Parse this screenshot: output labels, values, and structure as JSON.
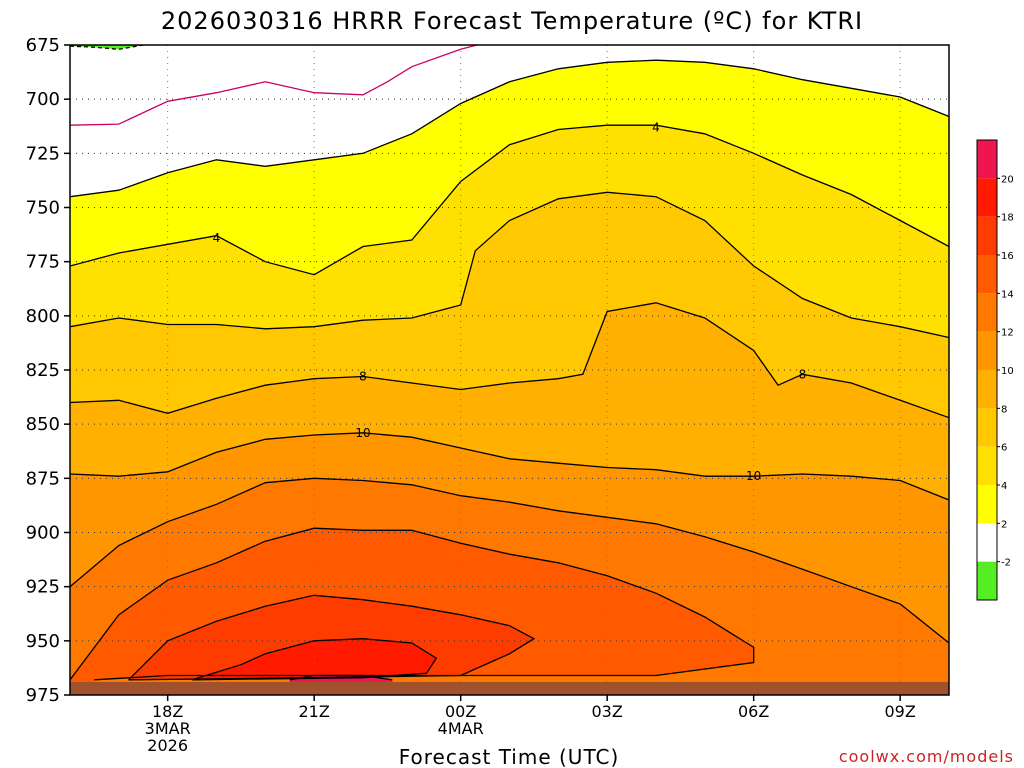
{
  "chart_data": {
    "type": "contour",
    "title": "2026030316 HRRR Forecast Temperature (ºC) for KTRI",
    "xlabel": "Forecast Time (UTC)",
    "ylabel": "",
    "credit": "coolwx.com/models",
    "y_axis": {
      "ticks": [
        675,
        700,
        725,
        750,
        775,
        800,
        825,
        850,
        875,
        900,
        925,
        950,
        975
      ],
      "ylim": [
        675,
        975
      ],
      "inverted": true
    },
    "x_axis": {
      "xlim": [
        16,
        34
      ],
      "ticks": [
        {
          "x": 18,
          "line1": "18Z",
          "line2": "3MAR",
          "line3": "2026"
        },
        {
          "x": 21,
          "line1": "21Z",
          "line2": "",
          "line3": ""
        },
        {
          "x": 24,
          "line1": "00Z",
          "line2": "4MAR",
          "line3": ""
        },
        {
          "x": 27,
          "line1": "03Z",
          "line2": "",
          "line3": ""
        },
        {
          "x": 30,
          "line1": "06Z",
          "line2": "",
          "line3": ""
        },
        {
          "x": 33,
          "line1": "09Z",
          "line2": "",
          "line3": ""
        }
      ]
    },
    "grid": true,
    "ground_level": 969,
    "colorbar": {
      "levels": [
        -2,
        2,
        4,
        6,
        8,
        10,
        12,
        14,
        16,
        18,
        20
      ],
      "labels": [
        "-2",
        "2",
        "4",
        "6",
        "8",
        "10",
        "12",
        "14",
        "16",
        "18",
        "20"
      ],
      "colors": [
        "#55ee22",
        "#ffffff",
        "#ffff00",
        "#ffe000",
        "#ffc800",
        "#ffb000",
        "#ff9600",
        "#ff7800",
        "#ff5a00",
        "#ff3c00",
        "#ff1a00",
        "#ee1650"
      ]
    },
    "contours": [
      {
        "level": -2,
        "color": "#000000",
        "dashed": true,
        "points": [
          [
            16,
            675.5
          ],
          [
            16.5,
            676
          ],
          [
            17,
            677
          ],
          [
            17.5,
            675
          ]
        ]
      },
      {
        "level": 0,
        "color": "#cc0066",
        "dashed": false,
        "points": [
          [
            16,
            712
          ],
          [
            17,
            711.5
          ],
          [
            18,
            701
          ],
          [
            19,
            697
          ],
          [
            20,
            692
          ],
          [
            21,
            697
          ],
          [
            22,
            698
          ],
          [
            22.5,
            692
          ],
          [
            23,
            685
          ],
          [
            24,
            677
          ],
          [
            24.5,
            674
          ]
        ]
      },
      {
        "level": 2,
        "color": "#000000",
        "dashed": false,
        "points": [
          [
            16,
            745
          ],
          [
            17,
            742
          ],
          [
            18,
            734
          ],
          [
            19,
            728
          ],
          [
            20,
            731
          ],
          [
            21,
            728
          ],
          [
            22,
            725
          ],
          [
            23,
            716
          ],
          [
            24,
            702
          ],
          [
            25,
            692
          ],
          [
            26,
            686
          ],
          [
            27,
            683
          ],
          [
            28,
            682
          ],
          [
            29,
            683
          ],
          [
            30,
            686
          ],
          [
            31,
            691
          ],
          [
            32,
            695
          ],
          [
            33,
            699
          ],
          [
            34,
            708
          ]
        ]
      },
      {
        "level": 4,
        "color": "#000000",
        "dashed": false,
        "label_at": [
          [
            19,
            764
          ],
          [
            28,
            713
          ]
        ],
        "points": [
          [
            16,
            777
          ],
          [
            17,
            771
          ],
          [
            18,
            767
          ],
          [
            19,
            763
          ],
          [
            20,
            775
          ],
          [
            21,
            781
          ],
          [
            22,
            768
          ],
          [
            23,
            765
          ],
          [
            24,
            738
          ],
          [
            25,
            721
          ],
          [
            26,
            714
          ],
          [
            27,
            712
          ],
          [
            28,
            712
          ],
          [
            29,
            716
          ],
          [
            30,
            725
          ],
          [
            31,
            735
          ],
          [
            32,
            744
          ],
          [
            33,
            756
          ],
          [
            34,
            768
          ]
        ]
      },
      {
        "level": 6,
        "color": "#000000",
        "dashed": false,
        "points": [
          [
            16,
            805
          ],
          [
            17,
            801
          ],
          [
            18,
            804
          ],
          [
            19,
            804
          ],
          [
            20,
            806
          ],
          [
            21,
            805
          ],
          [
            22,
            802
          ],
          [
            23,
            801
          ],
          [
            24,
            795
          ],
          [
            24.3,
            770
          ],
          [
            25,
            756
          ],
          [
            26,
            746
          ],
          [
            27,
            743
          ],
          [
            28,
            745
          ],
          [
            29,
            756
          ],
          [
            30,
            777
          ],
          [
            31,
            792
          ],
          [
            32,
            801
          ],
          [
            33,
            805
          ],
          [
            34,
            810
          ]
        ]
      },
      {
        "level": 8,
        "color": "#000000",
        "dashed": false,
        "label_at": [
          [
            22,
            828
          ],
          [
            31,
            827
          ]
        ],
        "points": [
          [
            16,
            840
          ],
          [
            17,
            839
          ],
          [
            18,
            845
          ],
          [
            19,
            838
          ],
          [
            20,
            832
          ],
          [
            21,
            829
          ],
          [
            22,
            828
          ],
          [
            23,
            831
          ],
          [
            24,
            834
          ],
          [
            25,
            831
          ],
          [
            26,
            829
          ],
          [
            26.5,
            827
          ],
          [
            27,
            798
          ],
          [
            28,
            794
          ],
          [
            29,
            801
          ],
          [
            30,
            816
          ],
          [
            30.5,
            832
          ],
          [
            31,
            827
          ],
          [
            32,
            831
          ],
          [
            33,
            839
          ],
          [
            34,
            847
          ]
        ]
      },
      {
        "level": 10,
        "color": "#000000",
        "dashed": false,
        "label_at": [
          [
            22,
            854
          ],
          [
            30,
            874
          ]
        ],
        "points": [
          [
            16,
            873
          ],
          [
            17,
            874
          ],
          [
            18,
            872
          ],
          [
            19,
            863
          ],
          [
            20,
            857
          ],
          [
            21,
            855
          ],
          [
            22,
            854
          ],
          [
            23,
            856
          ],
          [
            24,
            861
          ],
          [
            25,
            866
          ],
          [
            26,
            868
          ],
          [
            27,
            870
          ],
          [
            28,
            871
          ],
          [
            29,
            874
          ],
          [
            30,
            874
          ],
          [
            31,
            873
          ],
          [
            32,
            874
          ],
          [
            33,
            876
          ],
          [
            34,
            885
          ]
        ]
      },
      {
        "level": 12,
        "color": "#000000",
        "dashed": false,
        "points": [
          [
            16,
            925
          ],
          [
            17,
            906
          ],
          [
            18,
            895
          ],
          [
            19,
            887
          ],
          [
            20,
            877
          ],
          [
            21,
            875
          ],
          [
            22,
            876
          ],
          [
            23,
            878
          ],
          [
            24,
            883
          ],
          [
            25,
            886
          ],
          [
            26,
            890
          ],
          [
            27,
            893
          ],
          [
            28,
            896
          ],
          [
            29,
            902
          ],
          [
            30,
            909
          ],
          [
            31,
            917
          ],
          [
            32,
            925
          ],
          [
            33,
            933
          ],
          [
            34,
            951
          ]
        ]
      },
      {
        "level": 14,
        "color": "#000000",
        "dashed": false,
        "points": [
          [
            16,
            968
          ],
          [
            17,
            938
          ],
          [
            18,
            922
          ],
          [
            19,
            914
          ],
          [
            20,
            904
          ],
          [
            21,
            898
          ],
          [
            22,
            899
          ],
          [
            23,
            899
          ],
          [
            24,
            905
          ],
          [
            25,
            910
          ],
          [
            26,
            914
          ],
          [
            27,
            920
          ],
          [
            28,
            928
          ],
          [
            29,
            939
          ],
          [
            30,
            953
          ],
          [
            30,
            960
          ],
          [
            28,
            966
          ],
          [
            26,
            966
          ],
          [
            24,
            966
          ],
          [
            22,
            966
          ],
          [
            20,
            966
          ],
          [
            18,
            966
          ],
          [
            16.5,
            968
          ]
        ]
      },
      {
        "level": 16,
        "color": "#000000",
        "dashed": false,
        "points": [
          [
            17.2,
            968
          ],
          [
            18,
            950
          ],
          [
            19,
            941
          ],
          [
            20,
            934
          ],
          [
            21,
            929
          ],
          [
            22,
            931
          ],
          [
            23,
            934
          ],
          [
            24,
            938
          ],
          [
            25,
            943
          ],
          [
            25.5,
            949
          ],
          [
            25,
            956
          ],
          [
            24,
            966
          ],
          [
            21,
            967
          ],
          [
            17.2,
            968
          ]
        ]
      },
      {
        "level": 18,
        "color": "#000000",
        "dashed": false,
        "points": [
          [
            18.5,
            968
          ],
          [
            19.5,
            961
          ],
          [
            20,
            956
          ],
          [
            21,
            950
          ],
          [
            22,
            949
          ],
          [
            23,
            951
          ],
          [
            23.5,
            958
          ],
          [
            23.3,
            965
          ],
          [
            22,
            967
          ],
          [
            18.5,
            968
          ]
        ]
      },
      {
        "level": 20,
        "color": "#000000",
        "dashed": false,
        "points": [
          [
            20.5,
            968
          ],
          [
            21,
            966
          ],
          [
            22,
            966
          ],
          [
            22.6,
            968
          ]
        ]
      }
    ]
  }
}
